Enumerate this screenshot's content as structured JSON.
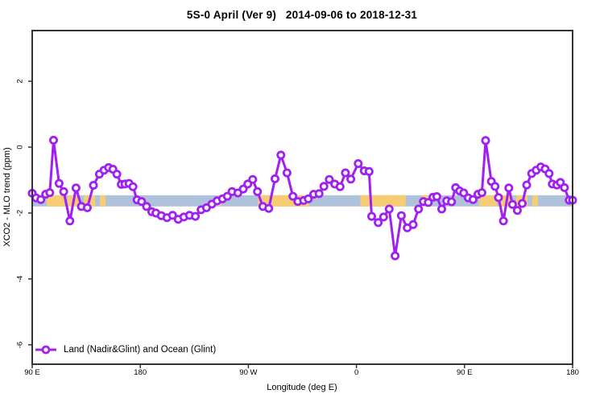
{
  "title": "5S-0 April (Ver 9)   2014-09-06 to 2018-12-31",
  "legend": {
    "label": "Land (Nadir&Glint) and Ocean (Glint)"
  },
  "colors": {
    "line": "#A020F0",
    "marker_fill": "#FFFFFF",
    "ocean_band": "#AEC3DB",
    "land_band": "#F7CD73",
    "axis": "#333333",
    "text": "#000000",
    "background": "#FFFFFF"
  },
  "chart_data": {
    "type": "line",
    "title": "5S-0 April (Ver 9)   2014-09-06 to 2018-12-31",
    "xlabel": "Longitude (deg E)",
    "ylabel": "XCO2 - MLO trend (ppm)",
    "grid": false,
    "legend_position": "bottom-left",
    "xlim_deg": [
      0,
      450
    ],
    "ylim": [
      -6.59,
      3.54
    ],
    "x_ticks": [
      {
        "pos": 0,
        "label": "90 E"
      },
      {
        "pos": 90,
        "label": "180"
      },
      {
        "pos": 180,
        "label": "90 W"
      },
      {
        "pos": 270,
        "label": "0"
      },
      {
        "pos": 360,
        "label": "90 E"
      },
      {
        "pos": 450,
        "label": "180"
      }
    ],
    "y_ticks": [
      {
        "pos": 2,
        "label": "2"
      },
      {
        "pos": 0,
        "label": "0"
      },
      {
        "pos": -2,
        "label": "-2"
      },
      {
        "pos": -4,
        "label": "-4"
      },
      {
        "pos": -6,
        "label": "-6"
      }
    ],
    "bands": {
      "ocean": {
        "val_top": -1.46,
        "val_bottom": -1.8,
        "deg_range": [
          0,
          450
        ]
      },
      "land_segments_deg": [
        [
          12.1,
          26.9
        ],
        [
          29.6,
          39.0
        ],
        [
          43.0,
          52.4
        ],
        [
          56.4,
          61.1
        ],
        [
          154.5,
          157.2
        ],
        [
          188.1,
          230.4
        ],
        [
          273.3,
          311.0
        ],
        [
          324.4,
          331.1
        ],
        [
          372.1,
          386.9
        ],
        [
          389.6,
          399.0
        ],
        [
          403.0,
          412.4
        ],
        [
          416.4,
          421.1
        ]
      ]
    },
    "series": [
      {
        "name": "Land (Nadir&Glint) and Ocean (Glint)",
        "marker": "open-circle",
        "points": [
          [
            0,
            -1.4
          ],
          [
            3.2,
            -1.54
          ],
          [
            7.2,
            -1.59
          ],
          [
            11.2,
            -1.43
          ],
          [
            14.6,
            -1.38
          ],
          [
            17.8,
            0.21
          ],
          [
            22.4,
            -1.1
          ],
          [
            26.2,
            -1.35
          ],
          [
            31.4,
            -2.24
          ],
          [
            36.5,
            -1.24
          ],
          [
            41.0,
            -1.8
          ],
          [
            45.9,
            -1.84
          ],
          [
            51.0,
            -1.16
          ],
          [
            55.9,
            -0.82
          ],
          [
            59.8,
            -0.7
          ],
          [
            63.6,
            -0.62
          ],
          [
            67.2,
            -0.67
          ],
          [
            70.5,
            -0.82
          ],
          [
            74.2,
            -1.13
          ],
          [
            77.2,
            -1.12
          ],
          [
            80.6,
            -1.1
          ],
          [
            83.9,
            -1.2
          ],
          [
            87.3,
            -1.6
          ],
          [
            91.1,
            -1.65
          ],
          [
            95.2,
            -1.8
          ],
          [
            99.6,
            -1.96
          ],
          [
            103.0,
            -2.0
          ],
          [
            107.5,
            -2.08
          ],
          [
            112.2,
            -2.14
          ],
          [
            116.9,
            -2.07
          ],
          [
            121.6,
            -2.19
          ],
          [
            126.3,
            -2.12
          ],
          [
            131.0,
            -2.07
          ],
          [
            135.9,
            -2.1
          ],
          [
            140.6,
            -1.9
          ],
          [
            145.1,
            -1.84
          ],
          [
            149.6,
            -1.73
          ],
          [
            154.0,
            -1.63
          ],
          [
            158.5,
            -1.57
          ],
          [
            162.5,
            -1.49
          ],
          [
            166.4,
            -1.35
          ],
          [
            171.3,
            -1.39
          ],
          [
            175.8,
            -1.27
          ],
          [
            179.5,
            -1.12
          ],
          [
            183.6,
            -0.98
          ],
          [
            187.6,
            -1.35
          ],
          [
            192.1,
            -1.8
          ],
          [
            197.0,
            -1.86
          ],
          [
            202.2,
            -0.96
          ],
          [
            207.1,
            -0.24
          ],
          [
            212.2,
            -0.78
          ],
          [
            217.1,
            -1.49
          ],
          [
            221.2,
            -1.65
          ],
          [
            226.1,
            -1.62
          ],
          [
            229.9,
            -1.57
          ],
          [
            234.4,
            -1.43
          ],
          [
            238.9,
            -1.41
          ],
          [
            242.9,
            -1.19
          ],
          [
            247.4,
            -0.98
          ],
          [
            251.9,
            -1.12
          ],
          [
            256.4,
            -1.2
          ],
          [
            260.8,
            -0.78
          ],
          [
            265.3,
            -0.97
          ],
          [
            271.5,
            -0.5
          ],
          [
            276.5,
            -0.72
          ],
          [
            280.5,
            -0.74
          ],
          [
            282.7,
            -2.1
          ],
          [
            288.1,
            -2.29
          ],
          [
            292.6,
            -2.12
          ],
          [
            297.3,
            -1.88
          ],
          [
            302.2,
            -3.3
          ],
          [
            307.4,
            -2.08
          ],
          [
            312.3,
            -2.45
          ],
          [
            317.2,
            -2.35
          ],
          [
            321.7,
            -1.88
          ],
          [
            325.7,
            -1.65
          ],
          [
            329.8,
            -1.68
          ],
          [
            333.8,
            -1.52
          ],
          [
            336.9,
            -1.5
          ],
          [
            341.0,
            -1.88
          ],
          [
            345.2,
            -1.63
          ],
          [
            349.2,
            -1.66
          ],
          [
            352.6,
            -1.23
          ],
          [
            355.9,
            -1.33
          ],
          [
            359.3,
            -1.39
          ],
          [
            363.1,
            -1.54
          ],
          [
            367.1,
            -1.59
          ],
          [
            371.2,
            -1.43
          ],
          [
            374.5,
            -1.38
          ],
          [
            377.6,
            0.2
          ],
          [
            382.3,
            -1.04
          ],
          [
            385.4,
            -1.19
          ],
          [
            388.3,
            -1.53
          ],
          [
            392.4,
            -2.24
          ],
          [
            396.9,
            -1.24
          ],
          [
            400.0,
            -1.74
          ],
          [
            404.0,
            -1.92
          ],
          [
            408.1,
            -1.71
          ],
          [
            411.8,
            -1.15
          ],
          [
            415.9,
            -0.8
          ],
          [
            419.7,
            -0.7
          ],
          [
            423.5,
            -0.6
          ],
          [
            427.1,
            -0.66
          ],
          [
            430.4,
            -0.8
          ],
          [
            433.1,
            -1.12
          ],
          [
            436.9,
            -1.15
          ],
          [
            439.8,
            -1.07
          ],
          [
            443.2,
            -1.23
          ],
          [
            447.2,
            -1.61
          ],
          [
            450.0,
            -1.61
          ]
        ]
      }
    ]
  }
}
